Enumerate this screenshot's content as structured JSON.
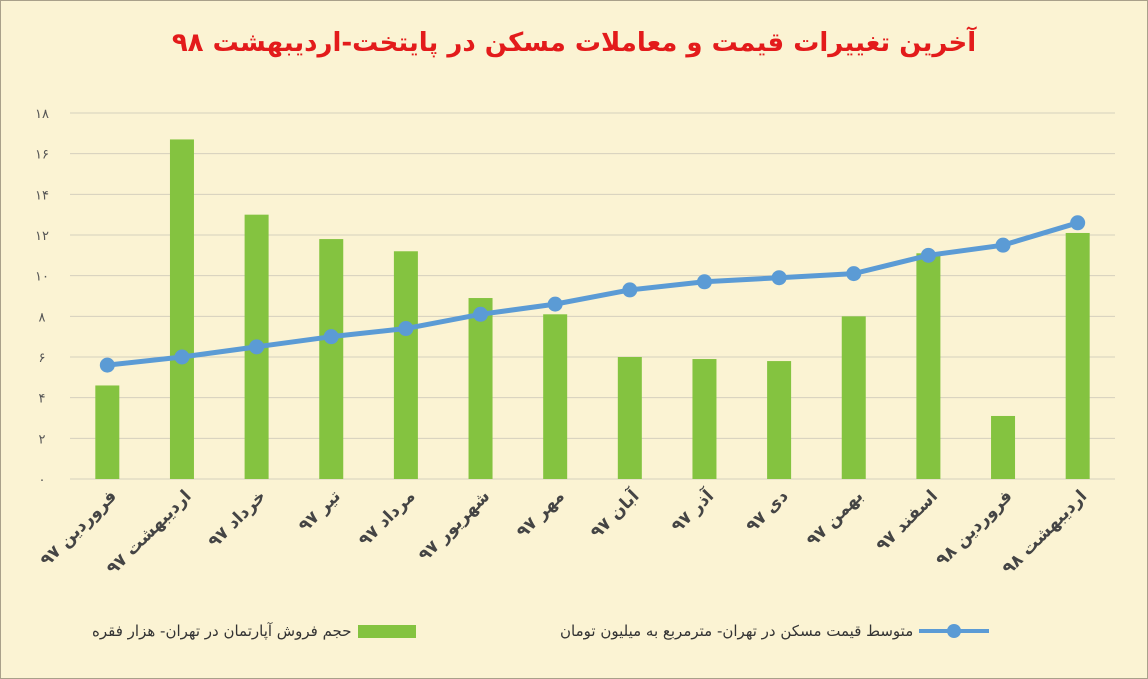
{
  "chart_data": {
    "type": "bar",
    "title": "آخرین تغییرات قیمت و معاملات مسکن در پایتخت-اردیبهشت ۹۸",
    "categories": [
      "فروردین ۹۷",
      "اردیبهشت ۹۷",
      "خرداد ۹۷",
      "تیر ۹۷",
      "مرداد ۹۷",
      "شهریور ۹۷",
      "مهر ۹۷",
      "آبان ۹۷",
      "آذر ۹۷",
      "دی ۹۷",
      "بهمن ۹۷",
      "اسفند ۹۷",
      "فروردین ۹۸",
      "اردیبهشت ۹۸"
    ],
    "y_ticks": [
      "۰",
      "۲",
      "۴",
      "۶",
      "۸",
      "۱۰",
      "۱۲",
      "۱۴",
      "۱۶",
      "۱۸"
    ],
    "ylim": [
      0,
      18
    ],
    "grid": true,
    "legend_position": "bottom",
    "series": [
      {
        "name": "حجم فروش آپارتمان در تهران- هزار فقره",
        "kind": "bar",
        "color": "#84c340",
        "values": [
          4.6,
          16.7,
          13.0,
          11.8,
          11.2,
          8.9,
          8.1,
          6.0,
          5.9,
          5.8,
          8.0,
          11.1,
          3.1,
          12.1
        ]
      },
      {
        "name": "متوسط قیمت مسکن در تهران- مترمربع به میلیون تومان",
        "kind": "line",
        "color": "#5b9bd5",
        "values": [
          5.6,
          6.0,
          6.5,
          7.0,
          7.4,
          8.1,
          8.6,
          9.3,
          9.7,
          9.9,
          10.1,
          11.0,
          11.5,
          12.6
        ]
      }
    ]
  }
}
